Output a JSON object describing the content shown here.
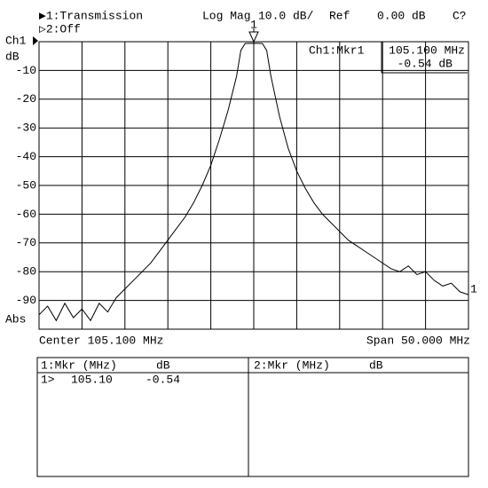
{
  "header": {
    "channel1": "▶1:Transmission",
    "channel2": "▷2:Off",
    "format": "Log Mag",
    "scale": "10.0 dB/",
    "ref_label": "Ref",
    "ref_value": "0.00 dB",
    "status": "C?"
  },
  "chart_data": {
    "type": "line",
    "y_unit": "dB",
    "ref_marker": "Ch1",
    "abs_label": "Abs",
    "center": "Center 105.100 MHz",
    "span": "Span 50.000 MHz",
    "ylim": [
      -100,
      0
    ],
    "yticks": [
      -10,
      -20,
      -30,
      -40,
      -50,
      -60,
      -70,
      -80,
      -90
    ],
    "xlim": [
      80.1,
      130.1
    ],
    "xticks": [
      85.1,
      90.1,
      95.1,
      100.1,
      105.1,
      110.1,
      115.1,
      120.1,
      125.1
    ],
    "grid": true,
    "x": [
      80.1,
      81.1,
      82.1,
      83.1,
      84.1,
      85.1,
      86.1,
      87.1,
      88.1,
      89.1,
      90.1,
      91.1,
      92.1,
      93.1,
      94.1,
      95.1,
      96.1,
      97.1,
      98.1,
      99.1,
      100.1,
      101.1,
      102.1,
      103.1,
      103.6,
      104.1,
      105.1,
      106.1,
      106.6,
      107.1,
      108.1,
      109.1,
      110.1,
      111.1,
      112.1,
      113.1,
      114.1,
      115.1,
      116.1,
      117.1,
      118.1,
      119.1,
      120.1,
      121.1,
      122.1,
      123.1,
      124.1,
      125.1,
      126.1,
      127.1,
      128.1,
      129.1,
      130.1
    ],
    "series": [
      {
        "name": "1",
        "color": "#000000",
        "values": [
          -95,
          -92,
          -97,
          -91,
          -96,
          -93,
          -97,
          -91,
          -94,
          -89,
          -86,
          -83,
          -80,
          -77,
          -73,
          -69,
          -65,
          -61,
          -56,
          -50,
          -43,
          -34,
          -24,
          -12,
          -3,
          -0.6,
          -0.54,
          -0.6,
          -3,
          -12,
          -26,
          -37,
          -45,
          -51,
          -56,
          -60,
          -63,
          -66,
          -69,
          -71,
          -73,
          -75,
          -77,
          -79,
          -80,
          -78,
          -81,
          -80,
          -83,
          -85,
          -84,
          -87,
          -88
        ]
      }
    ],
    "markers": [
      {
        "label": "1",
        "x": 105.1
      }
    ],
    "marker_readout": {
      "label": "Ch1:Mkr1",
      "frequency": "105.100 MHz",
      "value": "-0.54 dB"
    }
  },
  "marker_table": {
    "left": {
      "header": [
        "1:Mkr (MHz)",
        "dB"
      ],
      "rows": [
        [
          "1>",
          "105.10",
          "-0.54"
        ]
      ]
    },
    "right": {
      "header": [
        "2:Mkr (MHz)",
        "dB"
      ]
    }
  }
}
